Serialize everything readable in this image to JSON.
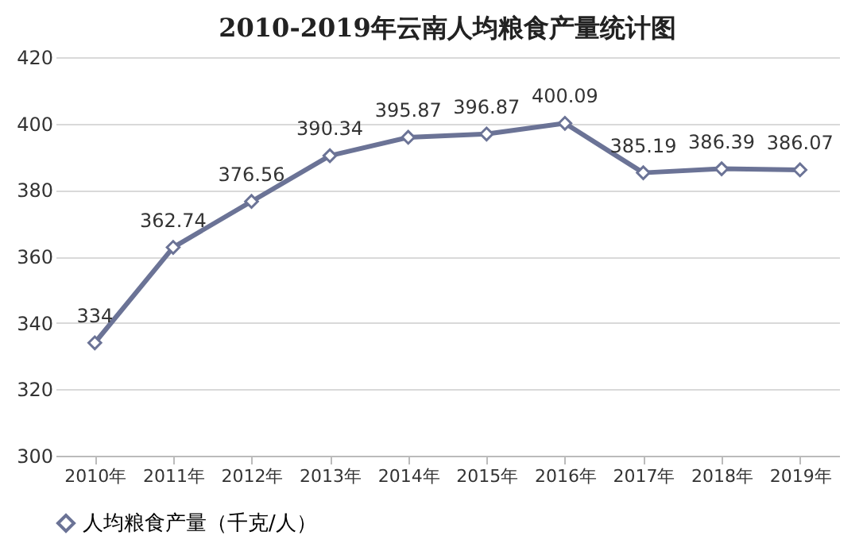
{
  "chart_data": {
    "type": "line",
    "title": "2010-2019年云南人均粮食产量统计图",
    "categories": [
      "2010年",
      "2011年",
      "2012年",
      "2013年",
      "2014年",
      "2015年",
      "2016年",
      "2017年",
      "2018年",
      "2019年"
    ],
    "series": [
      {
        "name": "人均粮食产量（千克/人）",
        "color": "#6b7396",
        "values": [
          334,
          362.74,
          376.56,
          390.34,
          395.87,
          396.87,
          400.09,
          385.19,
          386.39,
          386.07
        ]
      }
    ],
    "ylim": [
      300,
      420
    ],
    "yticks": [
      300,
      320,
      340,
      360,
      380,
      400,
      420
    ],
    "grid": "y",
    "legend": "bottom",
    "marker": "diamond",
    "line_style": "solid",
    "data_labels": true
  }
}
